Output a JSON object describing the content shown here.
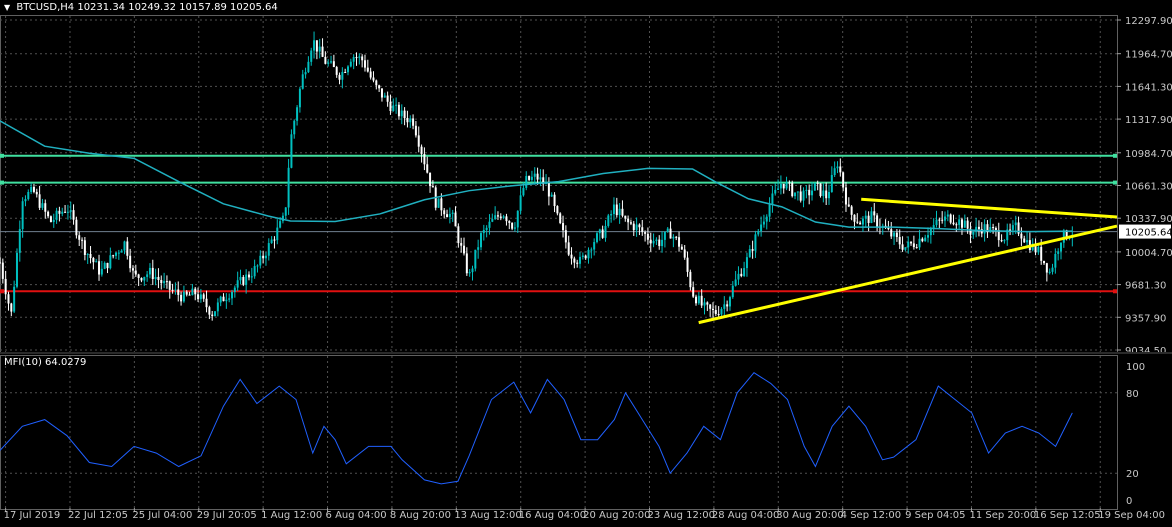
{
  "header": {
    "symbol_timeframe": "BTCUSD,H4",
    "open": "10231.34",
    "high": "10249.32",
    "low": "10157.89",
    "close": "10205.64"
  },
  "indicator": {
    "label": "MFI(10) 64.0279",
    "levels": [
      100,
      80,
      20,
      0
    ]
  },
  "colors": {
    "background": "#000000",
    "bull_candle": "#00c0c0",
    "bear_candle": "#ffffff",
    "moving_average": "#20b0c0",
    "resistance_lines": "#40e0a0",
    "support_line": "#e01010",
    "trendlines": "#ffff00",
    "mfi_line": "#2060ff",
    "grid": "#505050",
    "axis_text": "#c8c8c8"
  },
  "chart_data": {
    "type": "candlestick",
    "title": "BTCUSD,H4",
    "price_axis_labels": [
      "12297.90",
      "11964.70",
      "11641.30",
      "11317.90",
      "10984.70",
      "10661.30",
      "10337.90",
      "10004.70",
      "9681.30",
      "9357.90",
      "9034.50"
    ],
    "current_price_label": "10205.64",
    "time_axis_labels": [
      "17 Jul 2019",
      "22 Jul 12:05",
      "25 Jul 04:00",
      "29 Jul 20:05",
      "1 Aug 12:00",
      "6 Aug 04:00",
      "8 Aug 20:00",
      "13 Aug 12:00",
      "16 Aug 04:00",
      "20 Aug 20:00",
      "23 Aug 12:00",
      "28 Aug 04:00",
      "30 Aug 20:00",
      "4 Sep 12:00",
      "9 Sep 04:05",
      "11 Sep 20:00",
      "16 Sep 12:05",
      "19 Sep 04:00"
    ],
    "ylim": [
      9034.5,
      12297.9
    ],
    "horizontal_levels": [
      {
        "name": "resistance-upper",
        "price": 10955,
        "color": "#40e0a0"
      },
      {
        "name": "resistance-lower",
        "price": 10690,
        "color": "#40e0a0"
      },
      {
        "name": "support",
        "price": 9615,
        "color": "#e01010"
      }
    ],
    "trendlines": [
      {
        "name": "rising-support",
        "from": [
          0.6255,
          9305
        ],
        "to": [
          1.0,
          10260
        ],
        "color": "#ffff00"
      },
      {
        "name": "falling-resistance",
        "from": [
          0.771,
          10525
        ],
        "to": [
          1.0,
          10350
        ],
        "color": "#ffff00"
      }
    ],
    "price_path": [
      [
        0,
        9900
      ],
      [
        0.01,
        9380
      ],
      [
        0.02,
        10550
      ],
      [
        0.03,
        10600
      ],
      [
        0.045,
        10300
      ],
      [
        0.06,
        10450
      ],
      [
        0.075,
        10050
      ],
      [
        0.09,
        9800
      ],
      [
        0.1,
        9950
      ],
      [
        0.112,
        10100
      ],
      [
        0.12,
        9750
      ],
      [
        0.135,
        9800
      ],
      [
        0.15,
        9650
      ],
      [
        0.165,
        9550
      ],
      [
        0.175,
        9600
      ],
      [
        0.19,
        9400
      ],
      [
        0.2,
        9550
      ],
      [
        0.215,
        9700
      ],
      [
        0.23,
        9850
      ],
      [
        0.245,
        10150
      ],
      [
        0.255,
        10350
      ],
      [
        0.26,
        11100
      ],
      [
        0.27,
        11700
      ],
      [
        0.28,
        12100
      ],
      [
        0.29,
        11900
      ],
      [
        0.305,
        11750
      ],
      [
        0.315,
        11950
      ],
      [
        0.325,
        11900
      ],
      [
        0.335,
        11650
      ],
      [
        0.35,
        11450
      ],
      [
        0.36,
        11350
      ],
      [
        0.37,
        11300
      ],
      [
        0.38,
        10900
      ],
      [
        0.39,
        10500
      ],
      [
        0.405,
        10350
      ],
      [
        0.42,
        9750
      ],
      [
        0.43,
        10150
      ],
      [
        0.44,
        10300
      ],
      [
        0.45,
        10400
      ],
      [
        0.46,
        10250
      ],
      [
        0.47,
        10700
      ],
      [
        0.48,
        10750
      ],
      [
        0.49,
        10650
      ],
      [
        0.5,
        10300
      ],
      [
        0.51,
        10000
      ],
      [
        0.52,
        9900
      ],
      [
        0.53,
        10100
      ],
      [
        0.54,
        10200
      ],
      [
        0.55,
        10450
      ],
      [
        0.56,
        10300
      ],
      [
        0.57,
        10250
      ],
      [
        0.58,
        10150
      ],
      [
        0.59,
        10100
      ],
      [
        0.6,
        10200
      ],
      [
        0.61,
        10050
      ],
      [
        0.62,
        9600
      ],
      [
        0.63,
        9450
      ],
      [
        0.64,
        9400
      ],
      [
        0.65,
        9500
      ],
      [
        0.66,
        9750
      ],
      [
        0.67,
        9950
      ],
      [
        0.68,
        10250
      ],
      [
        0.69,
        10500
      ],
      [
        0.7,
        10700
      ],
      [
        0.71,
        10600
      ],
      [
        0.72,
        10550
      ],
      [
        0.73,
        10650
      ],
      [
        0.74,
        10550
      ],
      [
        0.75,
        10900
      ],
      [
        0.76,
        10400
      ],
      [
        0.77,
        10300
      ],
      [
        0.78,
        10350
      ],
      [
        0.79,
        10250
      ],
      [
        0.8,
        10150
      ],
      [
        0.81,
        10050
      ],
      [
        0.82,
        10100
      ],
      [
        0.83,
        10200
      ],
      [
        0.84,
        10300
      ],
      [
        0.85,
        10350
      ],
      [
        0.86,
        10300
      ],
      [
        0.87,
        10200
      ],
      [
        0.88,
        10250
      ],
      [
        0.89,
        10200
      ],
      [
        0.9,
        10150
      ],
      [
        0.91,
        10250
      ],
      [
        0.92,
        10100
      ],
      [
        0.93,
        10000
      ],
      [
        0.94,
        9800
      ],
      [
        0.95,
        10150
      ],
      [
        0.96,
        10200
      ]
    ],
    "moving_average_path": [
      [
        0,
        11300
      ],
      [
        0.04,
        11050
      ],
      [
        0.08,
        10980
      ],
      [
        0.12,
        10930
      ],
      [
        0.16,
        10700
      ],
      [
        0.2,
        10480
      ],
      [
        0.24,
        10360
      ],
      [
        0.26,
        10310
      ],
      [
        0.3,
        10305
      ],
      [
        0.34,
        10380
      ],
      [
        0.38,
        10520
      ],
      [
        0.42,
        10610
      ],
      [
        0.46,
        10660
      ],
      [
        0.5,
        10700
      ],
      [
        0.54,
        10780
      ],
      [
        0.58,
        10830
      ],
      [
        0.62,
        10825
      ],
      [
        0.64,
        10700
      ],
      [
        0.67,
        10530
      ],
      [
        0.7,
        10450
      ],
      [
        0.73,
        10300
      ],
      [
        0.76,
        10250
      ],
      [
        0.8,
        10250
      ],
      [
        0.84,
        10235
      ],
      [
        0.88,
        10215
      ],
      [
        0.92,
        10205
      ],
      [
        0.96,
        10210
      ]
    ],
    "mfi_path": [
      [
        0,
        37
      ],
      [
        0.02,
        55
      ],
      [
        0.04,
        60
      ],
      [
        0.06,
        48
      ],
      [
        0.08,
        28
      ],
      [
        0.1,
        25
      ],
      [
        0.12,
        40
      ],
      [
        0.14,
        35
      ],
      [
        0.16,
        25
      ],
      [
        0.18,
        33
      ],
      [
        0.2,
        70
      ],
      [
        0.215,
        90
      ],
      [
        0.23,
        72
      ],
      [
        0.25,
        85
      ],
      [
        0.265,
        75
      ],
      [
        0.28,
        35
      ],
      [
        0.29,
        55
      ],
      [
        0.3,
        45
      ],
      [
        0.31,
        27
      ],
      [
        0.33,
        40
      ],
      [
        0.35,
        40
      ],
      [
        0.36,
        30
      ],
      [
        0.38,
        15
      ],
      [
        0.395,
        12
      ],
      [
        0.41,
        14
      ],
      [
        0.42,
        33
      ],
      [
        0.44,
        75
      ],
      [
        0.46,
        88
      ],
      [
        0.475,
        65
      ],
      [
        0.49,
        90
      ],
      [
        0.505,
        75
      ],
      [
        0.52,
        45
      ],
      [
        0.535,
        45
      ],
      [
        0.55,
        60
      ],
      [
        0.56,
        80
      ],
      [
        0.575,
        60
      ],
      [
        0.59,
        40
      ],
      [
        0.6,
        20
      ],
      [
        0.615,
        35
      ],
      [
        0.63,
        55
      ],
      [
        0.645,
        45
      ],
      [
        0.66,
        80
      ],
      [
        0.675,
        95
      ],
      [
        0.69,
        87
      ],
      [
        0.705,
        75
      ],
      [
        0.72,
        40
      ],
      [
        0.73,
        25
      ],
      [
        0.745,
        55
      ],
      [
        0.76,
        70
      ],
      [
        0.775,
        55
      ],
      [
        0.79,
        30
      ],
      [
        0.8,
        32
      ],
      [
        0.82,
        45
      ],
      [
        0.84,
        85
      ],
      [
        0.855,
        75
      ],
      [
        0.87,
        65
      ],
      [
        0.885,
        35
      ],
      [
        0.9,
        50
      ],
      [
        0.915,
        55
      ],
      [
        0.93,
        50
      ],
      [
        0.945,
        40
      ],
      [
        0.96,
        65
      ]
    ]
  }
}
